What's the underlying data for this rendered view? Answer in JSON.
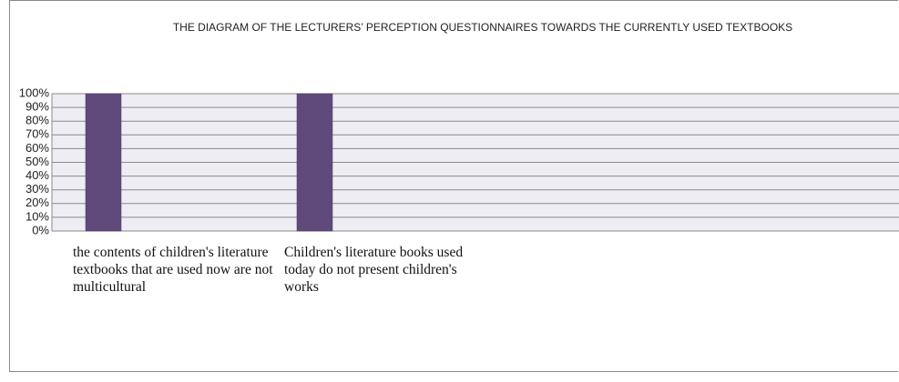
{
  "chart_data": {
    "type": "bar",
    "title": "THE DIAGRAM OF THE LECTURERS’ PERCEPTION QUESTIONNAIRES TOWARDS THE CURRENTLY USED TEXTBOOKS",
    "categories": [
      "the contents of children's literature textbooks that are used now are not multicultural",
      "Children's literature books used today do not present children's works"
    ],
    "values": [
      100,
      100
    ],
    "color": "#604a7b",
    "ylim": [
      0,
      100
    ],
    "yticks": [
      {
        "value": 0,
        "label": "0%"
      },
      {
        "value": 10,
        "label": "10%"
      },
      {
        "value": 20,
        "label": "20%"
      },
      {
        "value": 30,
        "label": "30%"
      },
      {
        "value": 40,
        "label": "40%"
      },
      {
        "value": 50,
        "label": "50%"
      },
      {
        "value": 60,
        "label": "60%"
      },
      {
        "value": 70,
        "label": "70%"
      },
      {
        "value": 80,
        "label": "80%"
      },
      {
        "value": 90,
        "label": "90%"
      },
      {
        "value": 100,
        "label": "100%"
      }
    ],
    "grid": true
  }
}
